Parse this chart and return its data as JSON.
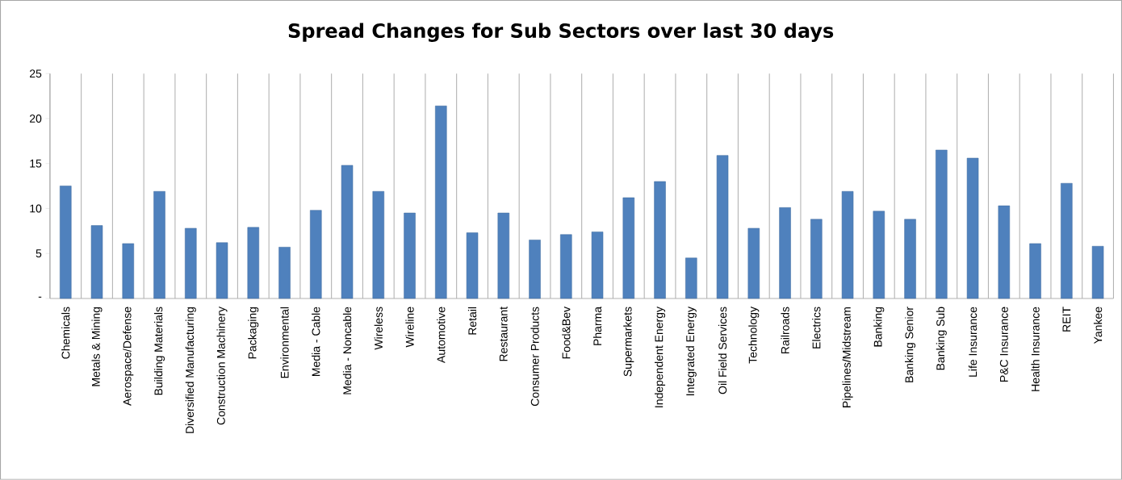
{
  "chart_data": {
    "type": "bar",
    "title": "Spread Changes for Sub Sectors over last 30 days",
    "categories": [
      "Chemicals",
      "Metals & Mining",
      "Aerospace/Defense",
      "Building Materials",
      "Diversified Manufacturing",
      "Construction Machinery",
      "Packaging",
      "Environmental",
      "Media - Cable",
      "Media - Noncable",
      "Wireless",
      "Wireline",
      "Automotive",
      "Retail",
      "Restaurant",
      "Consumer Products",
      "Food&Bev",
      "Pharma",
      "Supermarkets",
      "Independent Energy",
      "Integrated Energy",
      "Oil Field Services",
      "Technology",
      "Railroads",
      "Electrics",
      "Pipelines/Midstream",
      "Banking",
      "Banking Senior",
      "Banking Sub",
      "Life Insurance",
      "P&C Insurance",
      "Health Insurance",
      "REIT",
      "Yankee"
    ],
    "values": [
      12.5,
      8.1,
      6.1,
      11.9,
      7.8,
      6.2,
      7.9,
      5.7,
      9.8,
      14.8,
      11.9,
      9.5,
      21.4,
      7.3,
      9.5,
      6.5,
      7.1,
      7.4,
      11.2,
      13.0,
      4.5,
      15.9,
      7.8,
      10.1,
      8.8,
      11.9,
      9.7,
      8.8,
      16.5,
      15.6,
      10.3,
      6.1,
      12.8,
      5.8
    ],
    "color": "#4f81bd",
    "ylim": [
      0,
      25
    ],
    "yticks": [
      {
        "value": 0,
        "label": "-"
      },
      5,
      10,
      15,
      20,
      25
    ],
    "grid": "x"
  }
}
